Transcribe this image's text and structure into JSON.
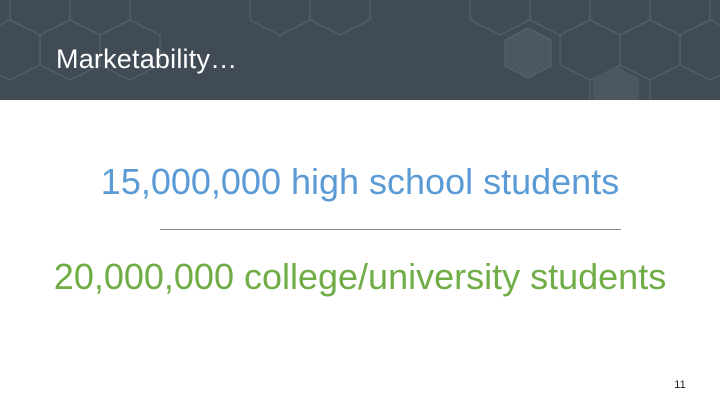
{
  "slide": {
    "title": "Marketability…",
    "stats": {
      "high_school": "15,000,000 high school students",
      "college": "20,000,000 college/university students"
    },
    "slide_number": "11"
  },
  "colors": {
    "header_background": "#414b56",
    "title_text": "#ffffff",
    "high_school_text": "#5b9bd5",
    "college_text": "#70ad47",
    "divider": "#8c8c8c"
  }
}
